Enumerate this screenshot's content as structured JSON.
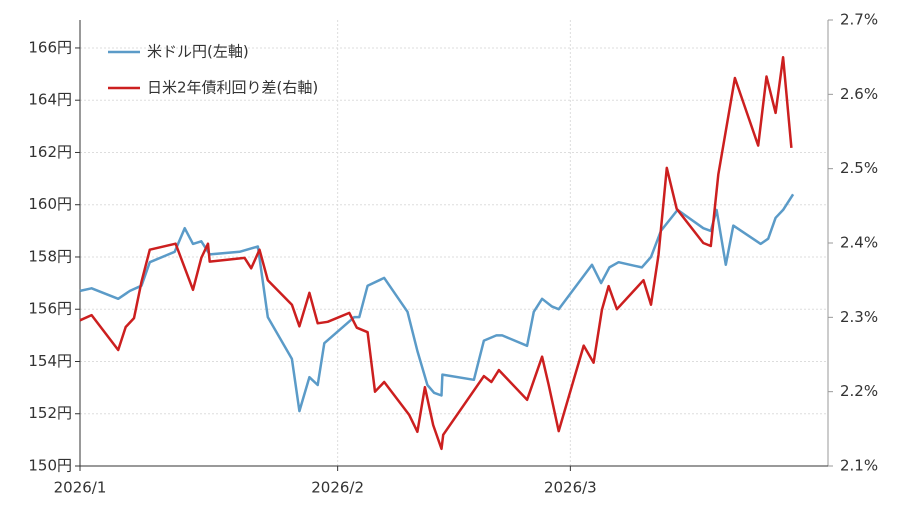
{
  "chart_data": {
    "type": "line",
    "xlim": [
      0,
      90
    ],
    "xticks": [
      {
        "value": 0,
        "label": "2026/1"
      },
      {
        "value": 31,
        "label": "2026/2"
      },
      {
        "value": 59,
        "label": "2026/3"
      }
    ],
    "ylim": [
      150,
      167.07
    ],
    "yticks": [
      {
        "value": 150,
        "label": "150円"
      },
      {
        "value": 152,
        "label": "152円"
      },
      {
        "value": 154,
        "label": "154円"
      },
      {
        "value": 156,
        "label": "156円"
      },
      {
        "value": 158,
        "label": "158円"
      },
      {
        "value": 160,
        "label": "160円"
      },
      {
        "value": 162,
        "label": "162円"
      },
      {
        "value": 164,
        "label": "164円"
      },
      {
        "value": 166,
        "label": "166円"
      }
    ],
    "y2lim": [
      2.1,
      2.7
    ],
    "y2ticks": [
      {
        "value": 2.1,
        "label": "2.1%"
      },
      {
        "value": 2.2,
        "label": "2.2%"
      },
      {
        "value": 2.3,
        "label": "2.3%"
      },
      {
        "value": 2.4,
        "label": "2.4%"
      },
      {
        "value": 2.5,
        "label": "2.5%"
      },
      {
        "value": 2.6,
        "label": "2.6%"
      },
      {
        "value": 2.7,
        "label": "2.7%"
      }
    ],
    "grid": true,
    "legend": "upper-left",
    "series": [
      {
        "name": "米ドル円(左軸)",
        "color": "#5b9bc8",
        "x": [
          0,
          1.4,
          4.6,
          6.0,
          7.4,
          8.4,
          11.4,
          12.6,
          13.6,
          14.6,
          15.6,
          19.2,
          21.4,
          22.6,
          25.5,
          26.4,
          27.6,
          28.6,
          29.4,
          33.0,
          33.6,
          34.6,
          36.6,
          39.4,
          40.6,
          41.8,
          42.6,
          43.5,
          43.6,
          47.4,
          48.6,
          50.1,
          50.8,
          53.8,
          54.6,
          55.6,
          56.8,
          57.6,
          61.6,
          62.7,
          63.7,
          64.8,
          67.6,
          68.7,
          69.9,
          71.9,
          75.0,
          75.9,
          76.6,
          77.7,
          78.6,
          81.9,
          82.8,
          83.7,
          84.6,
          85.8
        ],
        "values": [
          156.7,
          156.8,
          156.4,
          156.7,
          156.9,
          157.8,
          158.2,
          159.1,
          158.5,
          158.6,
          158.1,
          158.2,
          158.4,
          155.7,
          154.1,
          152.1,
          153.4,
          153.1,
          154.7,
          155.7,
          155.7,
          156.9,
          157.2,
          155.9,
          154.4,
          153.1,
          152.8,
          152.7,
          153.5,
          153.3,
          154.8,
          155.0,
          155.0,
          154.6,
          155.9,
          156.4,
          156.1,
          156.0,
          157.7,
          157.0,
          157.6,
          157.8,
          157.6,
          158.0,
          159.0,
          159.8,
          159.1,
          159.0,
          159.8,
          157.7,
          159.2,
          158.5,
          158.7,
          159.5,
          159.8,
          160.4
        ]
      },
      {
        "name": "日米2年債利回り差(右軸)",
        "color": "#cc1f1f",
        "axis": "y2",
        "x": [
          0,
          1.4,
          4.6,
          5.5,
          6.5,
          7.4,
          8.4,
          11.5,
          13.6,
          14.6,
          15.4,
          15.6,
          19.8,
          20.6,
          21.6,
          22.6,
          25.5,
          26.4,
          27.6,
          28.6,
          29.8,
          32.4,
          33.3,
          34.6,
          35.5,
          36.6,
          39.6,
          40.6,
          41.5,
          42.5,
          43.5,
          43.7,
          48.6,
          49.5,
          50.4,
          53.8,
          55.6,
          56.4,
          57.6,
          60.6,
          61.8,
          62.8,
          63.6,
          64.6,
          67.8,
          68.7,
          69.6,
          70.6,
          71.8,
          75.0,
          75.9,
          76.8,
          78.8,
          81.6,
          82.6,
          83.7,
          84.6,
          85.6
        ],
        "values": [
          2.296,
          2.303,
          2.256,
          2.287,
          2.299,
          2.348,
          2.391,
          2.399,
          2.337,
          2.38,
          2.399,
          2.375,
          2.38,
          2.366,
          2.391,
          2.35,
          2.317,
          2.288,
          2.333,
          2.292,
          2.294,
          2.306,
          2.286,
          2.28,
          2.2,
          2.213,
          2.169,
          2.146,
          2.206,
          2.155,
          2.123,
          2.142,
          2.221,
          2.213,
          2.229,
          2.189,
          2.247,
          2.209,
          2.147,
          2.262,
          2.239,
          2.31,
          2.342,
          2.311,
          2.35,
          2.317,
          2.384,
          2.501,
          2.446,
          2.4,
          2.396,
          2.492,
          2.622,
          2.531,
          2.624,
          2.575,
          2.65,
          2.528
        ]
      }
    ]
  }
}
